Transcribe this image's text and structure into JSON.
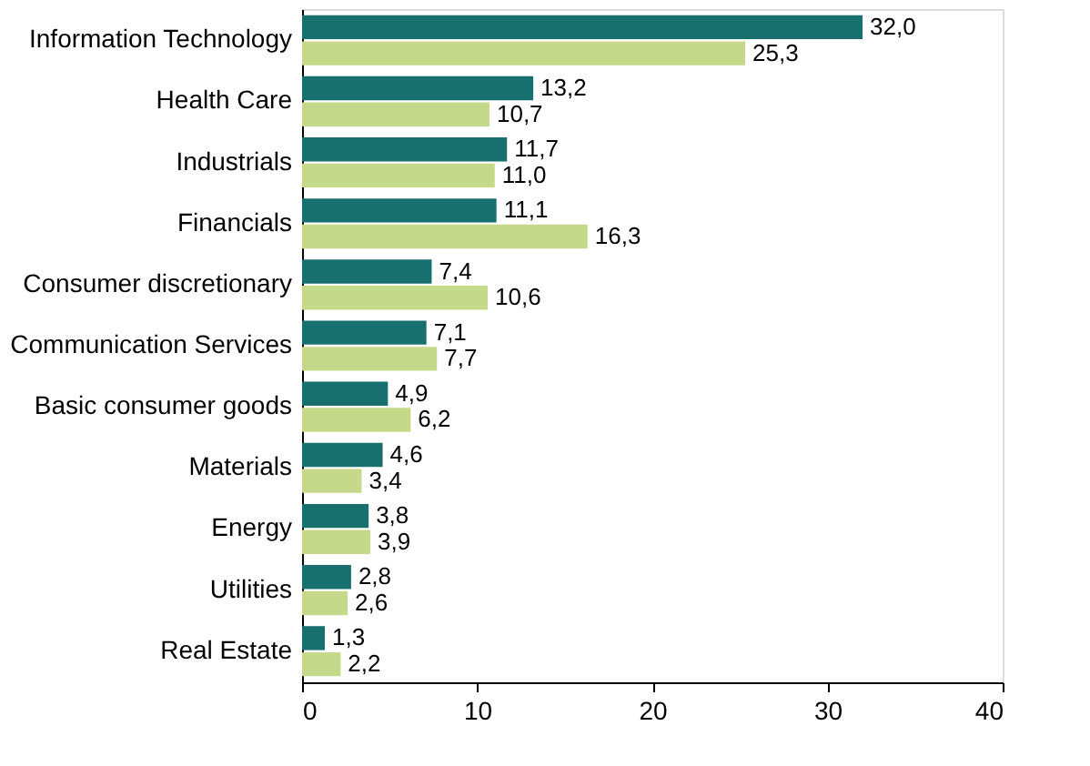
{
  "chart_data": {
    "type": "bar",
    "orientation": "horizontal",
    "categories": [
      "Information Technology",
      "Health Care",
      "Industrials",
      "Financials",
      "Consumer discretionary",
      "Communication Services",
      "Basic consumer goods",
      "Materials",
      "Energy",
      "Utilities",
      "Real Estate"
    ],
    "series": [
      {
        "color": "#17706e",
        "values": [
          32.0,
          13.2,
          11.7,
          11.1,
          7.4,
          7.1,
          4.9,
          4.6,
          3.8,
          2.8,
          1.3
        ],
        "value_labels": [
          "32,0",
          "13,2",
          "11,7",
          "11,1",
          "7,4",
          "7,1",
          "4,9",
          "4,6",
          "3,8",
          "2,8",
          "1,3"
        ]
      },
      {
        "color": "#c6d98b",
        "values": [
          25.3,
          10.7,
          11.0,
          16.3,
          10.6,
          7.7,
          6.2,
          3.4,
          3.9,
          2.6,
          2.2
        ],
        "value_labels": [
          "25,3",
          "10,7",
          "11,0",
          "16,3",
          "10,6",
          "7,7",
          "6,2",
          "3,4",
          "3,9",
          "2,6",
          "2,2"
        ]
      }
    ],
    "xlim": [
      0,
      40
    ],
    "xticks": [
      0,
      10,
      20,
      30,
      40
    ],
    "grid": false
  }
}
